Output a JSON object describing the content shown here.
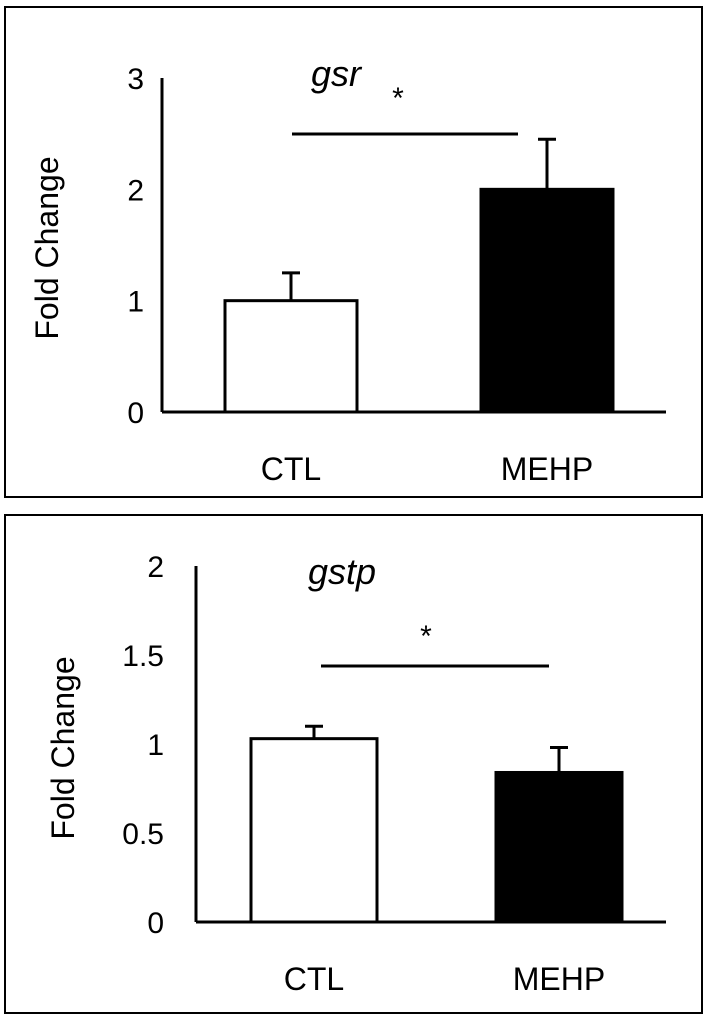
{
  "chart_data": [
    {
      "type": "bar",
      "title": "gsr",
      "ylabel": "Fold Change",
      "xlabel": "",
      "ylim": [
        0,
        3
      ],
      "yticks": [
        "0",
        "1",
        "2",
        "3"
      ],
      "categories": [
        "CTL",
        "MEHP"
      ],
      "values": [
        1.0,
        2.0
      ],
      "errors": [
        0.25,
        0.45
      ],
      "colors": [
        "#ffffff",
        "#000000"
      ],
      "significance": "*"
    },
    {
      "type": "bar",
      "title": "gstp",
      "ylabel": "Fold Change",
      "xlabel": "",
      "ylim": [
        0,
        2
      ],
      "yticks": [
        "0",
        "0.5",
        "1",
        "1.5",
        "2"
      ],
      "categories": [
        "CTL",
        "MEHP"
      ],
      "values": [
        1.03,
        0.84
      ],
      "errors": [
        0.07,
        0.14
      ],
      "colors": [
        "#ffffff",
        "#000000"
      ],
      "significance": "*"
    }
  ]
}
